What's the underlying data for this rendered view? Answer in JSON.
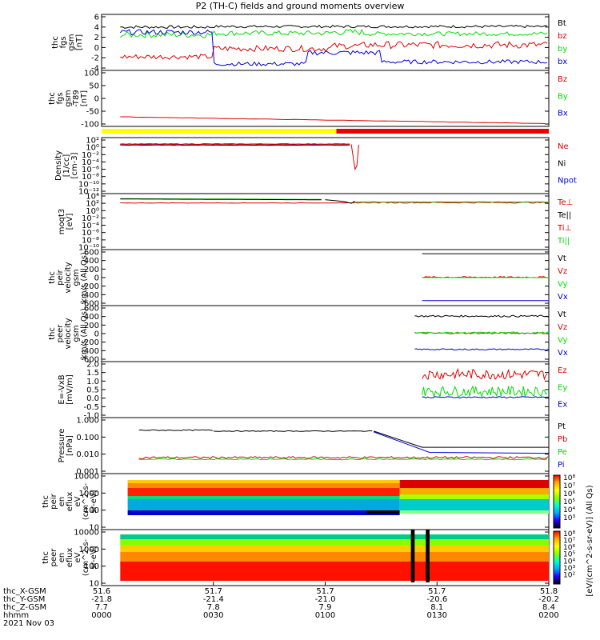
{
  "colors": {
    "black": "#000000",
    "red": "#e00000",
    "green": "#00dd00",
    "blue": "#0000dd",
    "yellow": "#ffff00",
    "barred": "#ee0000"
  },
  "page": {
    "title": "P2 (TH-C) fields and ground moments overview"
  },
  "chart_data": {
    "type": "line",
    "time_range": [
      "0000",
      "0200"
    ],
    "panels": [
      {
        "id": "fgs-gsm",
        "ylabel": [
          "thc",
          "fgs",
          "gsm",
          "[nT]"
        ],
        "yticks": [
          6,
          4,
          2,
          0,
          -2,
          -4
        ],
        "ylim": [
          -4,
          6
        ],
        "scale": "linear",
        "legend": [
          {
            "name": "Bt",
            "color": "black"
          },
          {
            "name": "bz",
            "color": "red"
          },
          {
            "name": "by",
            "color": "green"
          },
          {
            "name": "bx",
            "color": "blue"
          }
        ]
      },
      {
        "id": "fgs-t89",
        "ylabel": [
          "thc",
          "fgs",
          "gsm",
          "-T89",
          "[nT]"
        ],
        "yticks": [
          100,
          50,
          0,
          -50,
          -100
        ],
        "ylim": [
          -120,
          100
        ],
        "scale": "linear",
        "legend": [
          {
            "name": "Bz",
            "color": "red"
          },
          {
            "name": "By",
            "color": "green"
          },
          {
            "name": "Bx",
            "color": "blue"
          }
        ]
      },
      {
        "id": "density",
        "ylabel": [
          "Density",
          "[1/cc]",
          "[cm-3]"
        ],
        "yticks": [
          "10²",
          "10⁰",
          "10⁻²",
          "10⁻⁴",
          "10⁻⁶",
          "10⁻⁸",
          "10⁻¹⁰",
          "10⁻¹²"
        ],
        "scale": "log",
        "legend": [
          {
            "name": "Ne",
            "color": "red"
          },
          {
            "name": "Ni",
            "color": "black"
          },
          {
            "name": "Npot",
            "color": "blue"
          }
        ]
      },
      {
        "id": "temperature",
        "ylabel": [
          "moqt3",
          "[eV]"
        ],
        "yticks": [
          "10⁴",
          "10²",
          "10⁰",
          "10⁻²",
          "10⁻⁴",
          "10⁻⁶",
          "10⁻⁸",
          "10⁻¹⁰"
        ],
        "scale": "log",
        "legend": [
          {
            "name": "Te⊥",
            "color": "red"
          },
          {
            "name": "Te||",
            "color": "black"
          },
          {
            "name": "Ti⊥",
            "color": "red"
          },
          {
            "name": "Ti||",
            "color": "green"
          }
        ]
      },
      {
        "id": "peir-velocity",
        "ylabel": [
          "thc",
          "peir",
          "velocity",
          "gsm",
          "km/s (All Qs)"
        ],
        "yticks": [
          600,
          400,
          200,
          0,
          -200,
          -400,
          -600
        ],
        "ylim": [
          -600,
          600
        ],
        "scale": "linear",
        "legend": [
          {
            "name": "Vt",
            "color": "black"
          },
          {
            "name": "Vz",
            "color": "red"
          },
          {
            "name": "Vy",
            "color": "green"
          },
          {
            "name": "Vx",
            "color": "blue"
          }
        ]
      },
      {
        "id": "peer-velocity",
        "ylabel": [
          "thc",
          "peer",
          "velocity",
          "gsm",
          "km/s (All Qs)"
        ],
        "yticks": [
          600,
          400,
          200,
          0,
          -200,
          -400,
          -600
        ],
        "ylim": [
          -600,
          600
        ],
        "scale": "linear",
        "legend": [
          {
            "name": "Vt",
            "color": "black"
          },
          {
            "name": "Vz",
            "color": "red"
          },
          {
            "name": "Vy",
            "color": "green"
          },
          {
            "name": "Vx",
            "color": "blue"
          }
        ]
      },
      {
        "id": "efield",
        "ylabel": [
          "E=-VxB",
          "[mV/m]"
        ],
        "yticks": [
          "2.0",
          "1.5",
          "1.0",
          "0.5",
          "0.0",
          "-0.5",
          "-1.0"
        ],
        "ylim": [
          -1.0,
          2.0
        ],
        "scale": "linear",
        "legend": [
          {
            "name": "Ez",
            "color": "red"
          },
          {
            "name": "Ey",
            "color": "green"
          },
          {
            "name": "Ex",
            "color": "blue"
          }
        ]
      },
      {
        "id": "pressure",
        "ylabel": [
          "Pressure",
          "[nPa]"
        ],
        "yticks": [
          "1.000",
          "0.100",
          "0.010",
          "0.001"
        ],
        "scale": "log",
        "legend": [
          {
            "name": "Pt",
            "color": "black"
          },
          {
            "name": "Pb",
            "color": "red"
          },
          {
            "name": "Pe",
            "color": "green"
          },
          {
            "name": "Pi",
            "color": "blue"
          }
        ]
      },
      {
        "id": "peir-spectrogram",
        "ylabel": [
          "thc",
          "peir",
          "en",
          "eflux",
          "eV",
          "(cm^2-s-",
          "sr-eV)"
        ],
        "yticks": [
          "10000",
          "1000",
          "100",
          "10"
        ],
        "scale": "log",
        "colorbar_ticks": [
          "10⁸",
          "10⁷",
          "10⁶",
          "10⁵",
          "10⁴",
          "10³"
        ],
        "colorbar_label": "eV/(cm^2-s-sr-eV) (All Qs)"
      },
      {
        "id": "peer-spectrogram",
        "ylabel": [
          "thc",
          "peer",
          "en",
          "eflux",
          "eV",
          "(cm^2-s-",
          "sr-eV)"
        ],
        "yticks": [
          "10000",
          "1000",
          "100",
          "10"
        ],
        "scale": "log",
        "colorbar_ticks": [
          "10⁸",
          "10⁷",
          "10⁶",
          "10⁵",
          "10⁴",
          "10³",
          "10²"
        ],
        "colorbar_label": "eV/(cm^2-s-sr-eV) (All Qs)"
      }
    ],
    "xaxis": {
      "rows": [
        {
          "label": "thc_X-GSM",
          "values": [
            "51.6",
            "51.7",
            "51.7",
            "51.7",
            "51.8"
          ]
        },
        {
          "label": "thc_Y-GSM",
          "values": [
            "-21.8",
            "-21.4",
            "-21.0",
            "-20.6",
            "-20.2"
          ]
        },
        {
          "label": "thc_Z-GSM",
          "values": [
            "7.7",
            "7.8",
            "7.9",
            "8.1",
            "8.4"
          ]
        },
        {
          "label": "hhmm",
          "values": [
            "0000",
            "0030",
            "0100",
            "0130",
            "0200"
          ]
        }
      ],
      "date": "2021 Nov 03"
    },
    "colorbar_label": "[eV/(cm^2-s-sr-eV)] (All Qs)"
  }
}
